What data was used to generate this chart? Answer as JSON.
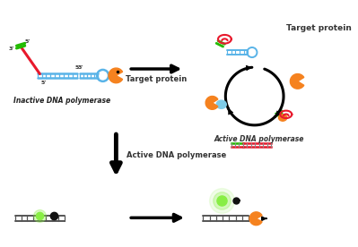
{
  "bg_color": "#ffffff",
  "label_inactive": "Inactive DNA polymerase",
  "label_target_protein": "Target protein",
  "label_active": "Active DNA polymerase",
  "label_active2": "Active DNA polymerase",
  "arrow_target_label": "Target protein",
  "colors": {
    "red": "#e8192c",
    "green": "#22bb00",
    "blue": "#5ab4e8",
    "orange": "#f5821f",
    "light_blue": "#7ecce8",
    "dark": "#111111",
    "green_glow": "#88ee44",
    "dna_gray": "#555555"
  }
}
